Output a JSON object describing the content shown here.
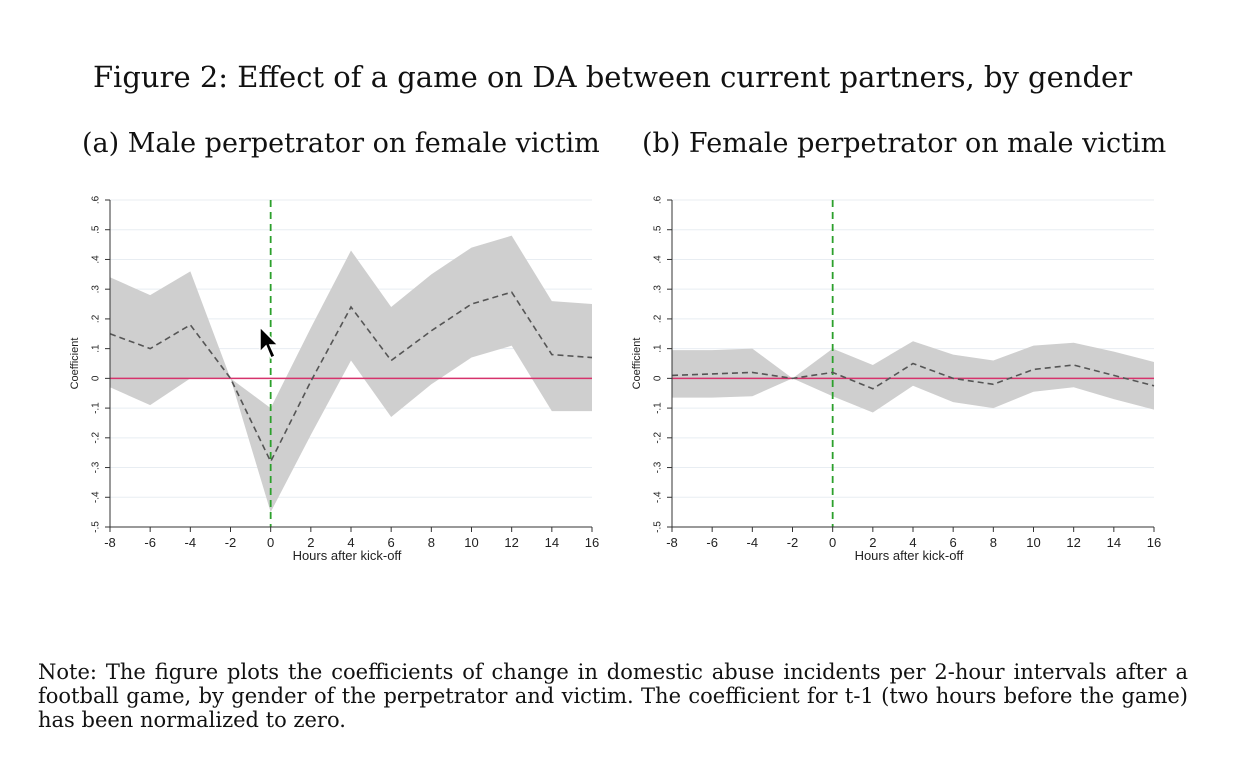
{
  "figure": {
    "title": "Figure 2: Effect of a game on DA between current partners, by gender",
    "note": "Note: The figure plots the coefficients of change in domestic abuse incidents per 2-hour intervals after a football game, by gender of the perpetrator and victim. The coefficient for t-1 (two hours before the game) has been normalized to zero."
  },
  "colors": {
    "band": "#cfcfcf",
    "estimate_line": "#555555",
    "zero_line": "#d6336c",
    "kickoff_line": "#2ca02c",
    "grid": "#e8edf2",
    "axis": "#333333"
  },
  "chart_data": [
    {
      "type": "line",
      "title": "(a) Male perpetrator on female victim",
      "xlabel": "Hours after kick-off",
      "ylabel": "Coefficient",
      "xlim": [
        -8,
        16
      ],
      "ylim": [
        -0.5,
        0.6
      ],
      "xticks": [
        -8,
        -6,
        -4,
        -2,
        0,
        2,
        4,
        6,
        8,
        10,
        12,
        14,
        16
      ],
      "xtick_labels": [
        "-8",
        "-6",
        "-4",
        "-2",
        "0",
        "2",
        "4",
        "6",
        "8",
        "10",
        "12",
        "14",
        "16"
      ],
      "yticks": [
        -0.5,
        -0.4,
        -0.3,
        -0.2,
        -0.1,
        0,
        0.1,
        0.2,
        0.3,
        0.4,
        0.5,
        0.6
      ],
      "ytick_labels": [
        "-.5",
        "-.4",
        "-.3",
        "-.2",
        "-.1",
        "0",
        ".1",
        ".2",
        ".3",
        ".4",
        ".5",
        ".6"
      ],
      "grid": true,
      "reference_lines": {
        "y_zero": 0,
        "x_kickoff": 0
      },
      "x": [
        -8,
        -6,
        -4,
        -2,
        0,
        2,
        4,
        6,
        8,
        10,
        12,
        14,
        16
      ],
      "series": [
        {
          "kind": "estimate",
          "values": [
            0.15,
            0.1,
            0.18,
            0.0,
            -0.28,
            -0.01,
            0.24,
            0.06,
            0.16,
            0.25,
            0.29,
            0.08,
            0.07
          ]
        },
        {
          "kind": "ci_upper",
          "values": [
            0.34,
            0.28,
            0.36,
            0.0,
            -0.1,
            0.17,
            0.43,
            0.24,
            0.35,
            0.44,
            0.48,
            0.26,
            0.25
          ]
        },
        {
          "kind": "ci_lower",
          "values": [
            -0.03,
            -0.09,
            0.0,
            0.0,
            -0.45,
            -0.19,
            0.06,
            -0.13,
            -0.02,
            0.07,
            0.11,
            -0.11,
            -0.11
          ]
        }
      ]
    },
    {
      "type": "line",
      "title": "(b) Female perpetrator on male victim",
      "xlabel": "Hours after kick-off",
      "ylabel": "Coefficient",
      "xlim": [
        -8,
        16
      ],
      "ylim": [
        -0.5,
        0.6
      ],
      "xticks": [
        -8,
        -6,
        -4,
        -2,
        0,
        2,
        4,
        6,
        8,
        10,
        12,
        14,
        16
      ],
      "xtick_labels": [
        "-8",
        "-6",
        "-4",
        "-2",
        "0",
        "2",
        "4",
        "6",
        "8",
        "10",
        "12",
        "14",
        "16"
      ],
      "yticks": [
        -0.5,
        -0.4,
        -0.3,
        -0.2,
        -0.1,
        0,
        0.1,
        0.2,
        0.3,
        0.4,
        0.5,
        0.6
      ],
      "ytick_labels": [
        "-.5",
        "-.4",
        "-.3",
        "-.2",
        "-.1",
        "0",
        ".1",
        ".2",
        ".3",
        ".4",
        ".5",
        ".6"
      ],
      "grid": true,
      "reference_lines": {
        "y_zero": 0,
        "x_kickoff": 0
      },
      "x": [
        -8,
        -6,
        -4,
        -2,
        0,
        2,
        4,
        6,
        8,
        10,
        12,
        14,
        16
      ],
      "series": [
        {
          "kind": "estimate",
          "values": [
            0.01,
            0.015,
            0.02,
            0.0,
            0.02,
            -0.035,
            0.05,
            0.0,
            -0.02,
            0.03,
            0.045,
            0.01,
            -0.025
          ]
        },
        {
          "kind": "ci_upper",
          "values": [
            0.095,
            0.095,
            0.1,
            0.0,
            0.1,
            0.045,
            0.125,
            0.08,
            0.06,
            0.11,
            0.12,
            0.09,
            0.055
          ]
        },
        {
          "kind": "ci_lower",
          "values": [
            -0.065,
            -0.065,
            -0.06,
            0.0,
            -0.06,
            -0.115,
            -0.025,
            -0.08,
            -0.1,
            -0.045,
            -0.03,
            -0.07,
            -0.105
          ]
        }
      ]
    }
  ]
}
